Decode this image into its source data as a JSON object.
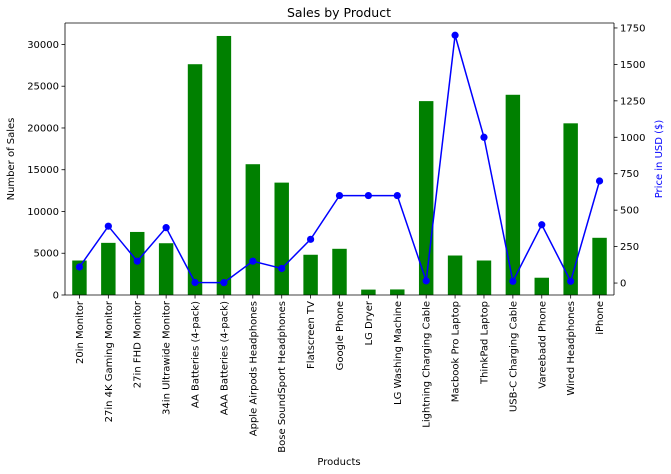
{
  "chart_data": {
    "type": "bar",
    "title": "Sales by Product",
    "xlabel": "Products",
    "ylabel": "Number of Sales",
    "y2label": "Price in USD ($)",
    "categories": [
      "20in Monitor",
      "27in 4K Gaming Monitor",
      "27in FHD Monitor",
      "34in Ultrawide Monitor",
      "AA Batteries (4-pack)",
      "AAA Batteries (4-pack)",
      "Apple Airpods Headphones",
      "Bose SoundSport Headphones",
      "Flatscreen TV",
      "Google Phone",
      "LG Dryer",
      "LG Washing Machine",
      "Lightning Charging Cable",
      "Macbook Pro Laptop",
      "ThinkPad Laptop",
      "USB-C Charging Cable",
      "Vareebadd Phone",
      "Wired Headphones",
      "iPhone"
    ],
    "series": [
      {
        "axis": "left",
        "kind": "bar",
        "color": "#008000",
        "values": [
          4129,
          6244,
          7550,
          6199,
          27635,
          31017,
          15661,
          13457,
          4819,
          5532,
          646,
          666,
          23217,
          4728,
          4130,
          23975,
          2068,
          20557,
          6849
        ]
      },
      {
        "axis": "right",
        "kind": "line",
        "color": "#0000ff",
        "values": [
          109.99,
          389.99,
          149.99,
          379.99,
          3.84,
          2.99,
          150,
          99.99,
          300,
          600,
          600,
          600,
          14.95,
          1700,
          999.99,
          11.95,
          400,
          11.99,
          700
        ]
      }
    ],
    "ylim": [
      0,
      32570
    ],
    "y2lim": [
      -82,
      1784
    ],
    "yticks": [
      0,
      5000,
      10000,
      15000,
      20000,
      25000,
      30000
    ],
    "y2ticks": [
      0,
      250,
      500,
      750,
      1000,
      1250,
      1500,
      1750
    ],
    "y2label_color": "#0000ff",
    "grid": false,
    "legend": "none"
  }
}
